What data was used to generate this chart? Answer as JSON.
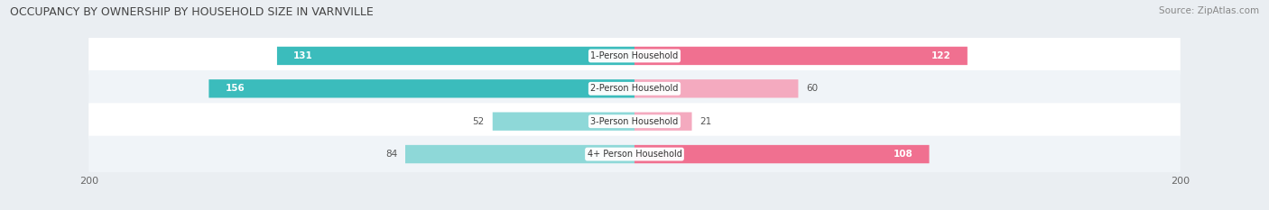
{
  "title": "OCCUPANCY BY OWNERSHIP BY HOUSEHOLD SIZE IN VARNVILLE",
  "source": "Source: ZipAtlas.com",
  "categories": [
    "1-Person Household",
    "2-Person Household",
    "3-Person Household",
    "4+ Person Household"
  ],
  "owner_values": [
    131,
    156,
    52,
    84
  ],
  "renter_values": [
    122,
    60,
    21,
    108
  ],
  "max_val": 200,
  "owner_color_strong": "#3BBCBC",
  "owner_color_light": "#8ED8D8",
  "renter_color_strong": "#F07090",
  "renter_color_light": "#F4AABF",
  "bg_color": "#EAEEF2",
  "row_bg_even": "#FFFFFF",
  "row_bg_odd": "#F0F4F8",
  "title_color": "#444444",
  "source_color": "#888888",
  "label_dark": "#FFFFFF",
  "label_light": "#555555"
}
